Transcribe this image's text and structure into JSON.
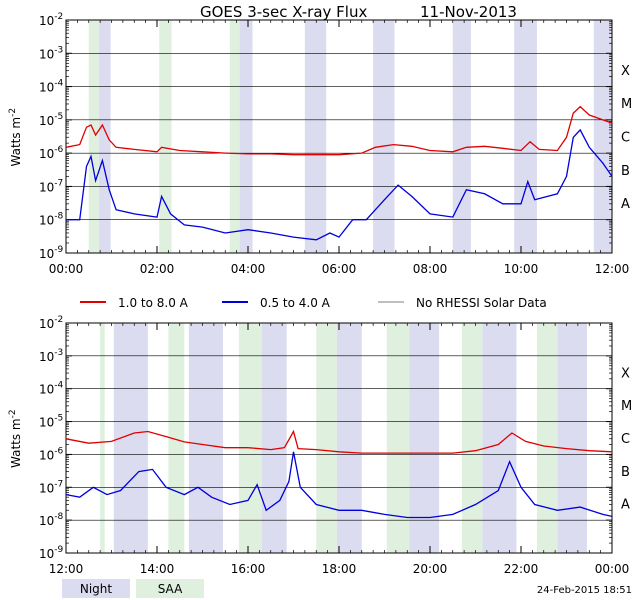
{
  "title": "GOES 3-sec X-ray Flux",
  "date": "11-Nov-2013",
  "ylabel": "Watts m",
  "ylabel_exp": "-2",
  "yticks": [
    {
      "label": "10",
      "exp": "-2"
    },
    {
      "label": "10",
      "exp": "-3"
    },
    {
      "label": "10",
      "exp": "-4"
    },
    {
      "label": "10",
      "exp": "-5"
    },
    {
      "label": "10",
      "exp": "-6"
    },
    {
      "label": "10",
      "exp": "-7"
    },
    {
      "label": "10",
      "exp": "-8"
    },
    {
      "label": "10",
      "exp": "-9"
    }
  ],
  "class_labels": [
    "X",
    "M",
    "C",
    "B",
    "A"
  ],
  "legend": [
    {
      "label": "1.0 to 8.0 A",
      "color": "#e00000"
    },
    {
      "label": "0.5 to 4.0 A",
      "color": "#0000dd"
    },
    {
      "label": "No RHESSI Solar Data",
      "color": "#999999"
    }
  ],
  "bottom_legend": [
    {
      "label": "Night",
      "color": "#dcdcf0"
    },
    {
      "label": "SAA",
      "color": "#dff0df"
    }
  ],
  "timestamp": "24-Feb-2015 18:51",
  "colors": {
    "long": "#e00000",
    "short": "#0000dd",
    "nodata": "#999999",
    "night": "#dcdcf0",
    "saa": "#dff0df"
  },
  "chart_data": [
    {
      "type": "line",
      "yscale": "log",
      "ylim": [
        1e-09,
        0.01
      ],
      "xlim_hours": [
        0,
        12
      ],
      "xticks": [
        "00:00",
        "02:00",
        "04:00",
        "06:00",
        "08:00",
        "10:00",
        "12:00"
      ],
      "night": [
        [
          0.72,
          0.98
        ],
        [
          3.75,
          4.1
        ],
        [
          5.25,
          5.72
        ],
        [
          6.75,
          7.22
        ],
        [
          8.5,
          8.9
        ],
        [
          9.85,
          10.35
        ],
        [
          11.6,
          12.0
        ]
      ],
      "saa": [
        [
          0.5,
          0.72
        ],
        [
          2.05,
          2.32
        ],
        [
          3.6,
          3.82
        ]
      ],
      "series": [
        {
          "name": "1.0 to 8.0 A",
          "points": [
            [
              0,
              1.5e-06
            ],
            [
              0.3,
              1.8e-06
            ],
            [
              0.45,
              6e-06
            ],
            [
              0.55,
              7e-06
            ],
            [
              0.65,
              3.5e-06
            ],
            [
              0.8,
              7e-06
            ],
            [
              0.95,
              2.5e-06
            ],
            [
              1.1,
              1.5e-06
            ],
            [
              1.5,
              1.3e-06
            ],
            [
              2.0,
              1.1e-06
            ],
            [
              2.1,
              1.5e-06
            ],
            [
              2.5,
              1.2e-06
            ],
            [
              3.0,
              1.1e-06
            ],
            [
              3.5,
              1e-06
            ],
            [
              4.0,
              9.5e-07
            ],
            [
              4.5,
              9.5e-07
            ],
            [
              5.0,
              9e-07
            ],
            [
              5.5,
              9e-07
            ],
            [
              6.0,
              9e-07
            ],
            [
              6.5,
              1e-06
            ],
            [
              6.8,
              1.5e-06
            ],
            [
              7.2,
              1.8e-06
            ],
            [
              7.6,
              1.6e-06
            ],
            [
              8.0,
              1.2e-06
            ],
            [
              8.5,
              1.1e-06
            ],
            [
              8.8,
              1.5e-06
            ],
            [
              9.2,
              1.6e-06
            ],
            [
              9.6,
              1.4e-06
            ],
            [
              10.0,
              1.2e-06
            ],
            [
              10.2,
              2.2e-06
            ],
            [
              10.4,
              1.3e-06
            ],
            [
              10.8,
              1.2e-06
            ],
            [
              11.0,
              3e-06
            ],
            [
              11.15,
              1.6e-05
            ],
            [
              11.3,
              2.5e-05
            ],
            [
              11.5,
              1.4e-05
            ],
            [
              11.8,
              1e-05
            ],
            [
              12.0,
              8e-06
            ]
          ]
        },
        {
          "name": "0.5 to 4.0 A",
          "points": [
            [
              0,
              1e-08
            ],
            [
              0.3,
              1e-08
            ],
            [
              0.45,
              4e-07
            ],
            [
              0.55,
              8e-07
            ],
            [
              0.65,
              1.5e-07
            ],
            [
              0.8,
              6e-07
            ],
            [
              0.95,
              8e-08
            ],
            [
              1.1,
              2e-08
            ],
            [
              1.5,
              1.5e-08
            ],
            [
              2.0,
              1.2e-08
            ],
            [
              2.1,
              5e-08
            ],
            [
              2.3,
              1.5e-08
            ],
            [
              2.6,
              7e-09
            ],
            [
              3.0,
              6e-09
            ],
            [
              3.5,
              4e-09
            ],
            [
              4.0,
              5e-09
            ],
            [
              4.5,
              4e-09
            ],
            [
              5.0,
              3e-09
            ],
            [
              5.5,
              2.5e-09
            ],
            [
              5.8,
              4e-09
            ],
            [
              6.0,
              3e-09
            ],
            [
              6.3,
              1e-08
            ],
            [
              6.6,
              1e-08
            ],
            [
              7.0,
              4e-08
            ],
            [
              7.3,
              1.1e-07
            ],
            [
              7.6,
              5e-08
            ],
            [
              8.0,
              1.5e-08
            ],
            [
              8.5,
              1.2e-08
            ],
            [
              8.8,
              8e-08
            ],
            [
              9.2,
              6e-08
            ],
            [
              9.6,
              3e-08
            ],
            [
              10.0,
              3e-08
            ],
            [
              10.15,
              1.4e-07
            ],
            [
              10.3,
              4e-08
            ],
            [
              10.8,
              6e-08
            ],
            [
              11.0,
              2e-07
            ],
            [
              11.15,
              3e-06
            ],
            [
              11.3,
              5e-06
            ],
            [
              11.5,
              1.5e-06
            ],
            [
              11.8,
              5e-07
            ],
            [
              12.0,
              2e-07
            ]
          ]
        }
      ]
    },
    {
      "type": "line",
      "yscale": "log",
      "ylim": [
        1e-09,
        0.01
      ],
      "xlim_hours": [
        12,
        24
      ],
      "xticks": [
        "12:00",
        "14:00",
        "16:00",
        "18:00",
        "20:00",
        "22:00",
        "00:00"
      ],
      "night": [
        [
          13.05,
          13.8
        ],
        [
          14.7,
          15.45
        ],
        [
          16.3,
          16.85
        ],
        [
          17.95,
          18.5
        ],
        [
          19.55,
          20.2
        ],
        [
          21.15,
          21.9
        ],
        [
          22.8,
          23.45
        ]
      ],
      "saa": [
        [
          12.75,
          12.85
        ],
        [
          14.25,
          14.6
        ],
        [
          15.8,
          16.3
        ],
        [
          17.5,
          17.95
        ],
        [
          19.05,
          19.55
        ],
        [
          20.7,
          21.15
        ],
        [
          22.35,
          22.8
        ]
      ],
      "series": [
        {
          "name": "1.0 to 8.0 A",
          "points": [
            [
              12.0,
              3e-06
            ],
            [
              12.5,
              2.2e-06
            ],
            [
              13.0,
              2.5e-06
            ],
            [
              13.5,
              4.5e-06
            ],
            [
              13.8,
              5e-06
            ],
            [
              14.2,
              3.5e-06
            ],
            [
              14.6,
              2.4e-06
            ],
            [
              15.0,
              2e-06
            ],
            [
              15.5,
              1.6e-06
            ],
            [
              16.0,
              1.6e-06
            ],
            [
              16.5,
              1.4e-06
            ],
            [
              16.8,
              1.6e-06
            ],
            [
              17.0,
              5e-06
            ],
            [
              17.1,
              1.5e-06
            ],
            [
              17.5,
              1.4e-06
            ],
            [
              18.0,
              1.2e-06
            ],
            [
              18.5,
              1.1e-06
            ],
            [
              19.0,
              1.1e-06
            ],
            [
              19.5,
              1.1e-06
            ],
            [
              20.0,
              1.1e-06
            ],
            [
              20.5,
              1.1e-06
            ],
            [
              21.0,
              1.3e-06
            ],
            [
              21.5,
              2e-06
            ],
            [
              21.8,
              4.5e-06
            ],
            [
              22.1,
              2.5e-06
            ],
            [
              22.5,
              1.8e-06
            ],
            [
              23.0,
              1.5e-06
            ],
            [
              23.5,
              1.3e-06
            ],
            [
              24.0,
              1.2e-06
            ]
          ]
        },
        {
          "name": "0.5 to 4.0 A",
          "points": [
            [
              12.0,
              6e-08
            ],
            [
              12.3,
              5e-08
            ],
            [
              12.6,
              1e-07
            ],
            [
              12.9,
              6e-08
            ],
            [
              13.2,
              8e-08
            ],
            [
              13.6,
              3e-07
            ],
            [
              13.9,
              3.5e-07
            ],
            [
              14.2,
              1e-07
            ],
            [
              14.6,
              6e-08
            ],
            [
              14.9,
              1e-07
            ],
            [
              15.2,
              5e-08
            ],
            [
              15.6,
              3e-08
            ],
            [
              16.0,
              4e-08
            ],
            [
              16.2,
              1.2e-07
            ],
            [
              16.4,
              2e-08
            ],
            [
              16.7,
              4e-08
            ],
            [
              16.9,
              1.5e-07
            ],
            [
              17.0,
              1.2e-06
            ],
            [
              17.15,
              1e-07
            ],
            [
              17.5,
              3e-08
            ],
            [
              18.0,
              2e-08
            ],
            [
              18.5,
              2e-08
            ],
            [
              19.0,
              1.5e-08
            ],
            [
              19.5,
              1.2e-08
            ],
            [
              20.0,
              1.2e-08
            ],
            [
              20.5,
              1.5e-08
            ],
            [
              21.0,
              3e-08
            ],
            [
              21.5,
              8e-08
            ],
            [
              21.75,
              6e-07
            ],
            [
              22.0,
              1e-07
            ],
            [
              22.3,
              3e-08
            ],
            [
              22.8,
              2e-08
            ],
            [
              23.3,
              2.5e-08
            ],
            [
              23.8,
              1.5e-08
            ],
            [
              24.0,
              1.3e-08
            ]
          ]
        }
      ]
    }
  ]
}
